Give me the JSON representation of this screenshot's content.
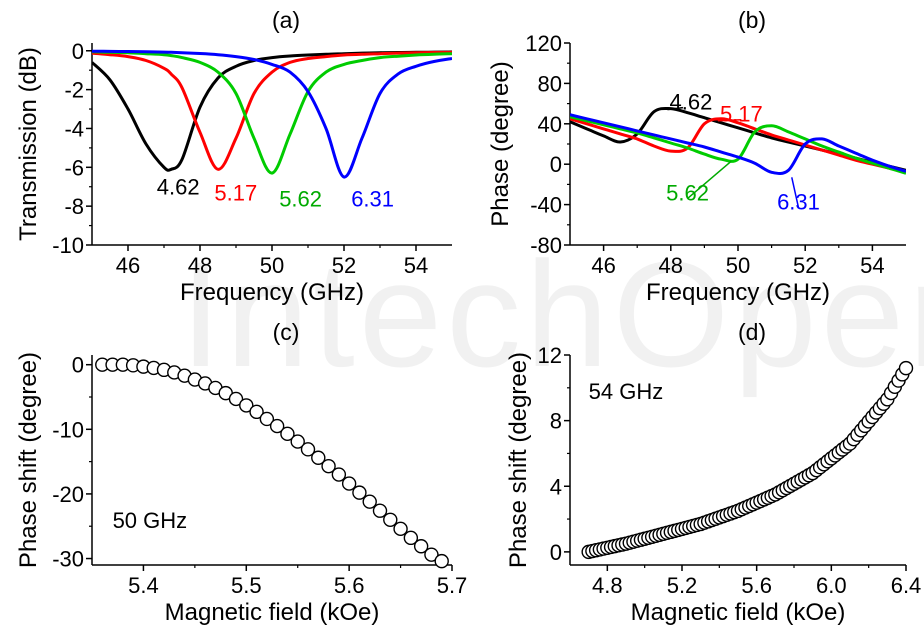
{
  "watermark": "IntechOpen",
  "chart_data": [
    {
      "panel": "(a)",
      "type": "line",
      "xlabel": "Frequency (GHz)",
      "ylabel": "Transmission (dB)",
      "xlim": [
        45,
        55
      ],
      "ylim": [
        -10,
        0.4
      ],
      "xticks": [
        46,
        48,
        50,
        52,
        54
      ],
      "yticks": [
        0,
        -2,
        -4,
        -6,
        -8,
        -10
      ],
      "grid": false,
      "x": [
        45.0,
        45.5,
        46.0,
        46.5,
        47.0,
        47.2,
        47.5,
        48.0,
        48.5,
        49.0,
        49.5,
        50.0,
        50.5,
        51.0,
        51.5,
        52.0,
        52.5,
        53.0,
        53.5,
        54.0,
        54.5,
        55.0
      ],
      "series": [
        {
          "name": "4.62",
          "color": "#000000",
          "values": [
            -0.6,
            -1.5,
            -3.0,
            -4.8,
            -6.0,
            -6.1,
            -5.6,
            -2.9,
            -1.4,
            -0.8,
            -0.5,
            -0.35,
            -0.27,
            -0.22,
            -0.18,
            -0.15,
            -0.12,
            -0.1,
            -0.09,
            -0.08,
            -0.07,
            -0.06
          ]
        },
        {
          "name": "5.17",
          "color": "#ff0000",
          "values": [
            -0.12,
            -0.2,
            -0.3,
            -0.5,
            -0.9,
            -1.2,
            -1.9,
            -4.2,
            -6.1,
            -4.5,
            -2.2,
            -1.1,
            -0.6,
            -0.4,
            -0.3,
            -0.22,
            -0.18,
            -0.15,
            -0.12,
            -0.1,
            -0.09,
            -0.08
          ]
        },
        {
          "name": "5.62",
          "color": "#00cc00",
          "values": [
            -0.05,
            -0.08,
            -0.1,
            -0.15,
            -0.2,
            -0.25,
            -0.35,
            -0.6,
            -1.1,
            -2.2,
            -4.5,
            -6.3,
            -4.3,
            -2.1,
            -1.1,
            -0.7,
            -0.5,
            -0.35,
            -0.28,
            -0.22,
            -0.18,
            -0.15
          ]
        },
        {
          "name": "6.31",
          "color": "#0000ff",
          "values": [
            -0.02,
            -0.03,
            -0.04,
            -0.05,
            -0.07,
            -0.08,
            -0.1,
            -0.14,
            -0.2,
            -0.3,
            -0.45,
            -0.7,
            -1.1,
            -2.1,
            -4.0,
            -6.5,
            -4.5,
            -2.2,
            -1.2,
            -0.8,
            -0.55,
            -0.4
          ]
        }
      ],
      "annotations": [
        {
          "text": "4.62",
          "color": "#000000",
          "x": 46.8,
          "y": -7.0
        },
        {
          "text": "5.17",
          "color": "#ff0000",
          "x": 48.4,
          "y": -7.3
        },
        {
          "text": "5.62",
          "color": "#00aa00",
          "x": 50.2,
          "y": -7.6
        },
        {
          "text": "6.31",
          "color": "#0000ff",
          "x": 52.2,
          "y": -7.6
        }
      ]
    },
    {
      "panel": "(b)",
      "type": "line",
      "xlabel": "Frequency (GHz)",
      "ylabel": "Phase (degree)",
      "xlim": [
        45,
        55
      ],
      "ylim": [
        -80,
        120
      ],
      "xticks": [
        46,
        48,
        50,
        52,
        54
      ],
      "yticks": [
        120,
        80,
        40,
        0,
        -40,
        -80
      ],
      "grid": false,
      "x": [
        45.0,
        45.5,
        46.0,
        46.5,
        47.0,
        47.5,
        48.0,
        48.5,
        49.0,
        49.5,
        50.0,
        50.5,
        51.0,
        51.5,
        52.0,
        52.5,
        53.0,
        53.5,
        54.0,
        54.5,
        55.0
      ],
      "series": [
        {
          "name": "4.62",
          "color": "#000000",
          "values": [
            42,
            35,
            28,
            22,
            30,
            52,
            55,
            51,
            46,
            41,
            36,
            31,
            26,
            22,
            18,
            14,
            10,
            6,
            2,
            -2,
            -6
          ]
        },
        {
          "name": "5.17",
          "color": "#ff0000",
          "values": [
            45,
            40,
            35,
            30,
            25,
            18,
            13,
            16,
            40,
            45,
            41,
            35,
            29,
            24,
            19,
            14,
            9,
            4,
            0,
            -4,
            -8
          ]
        },
        {
          "name": "5.62",
          "color": "#00cc00",
          "values": [
            47,
            43,
            39,
            35,
            31,
            26,
            21,
            16,
            10,
            5,
            5,
            32,
            38,
            32,
            25,
            18,
            12,
            6,
            1,
            -4,
            -9
          ]
        },
        {
          "name": "6.31",
          "color": "#0000ff",
          "values": [
            49,
            45,
            41,
            37,
            33,
            29,
            25,
            21,
            17,
            12,
            7,
            1,
            -8,
            -6,
            20,
            25,
            18,
            11,
            4,
            -2,
            -7
          ]
        }
      ],
      "annotations": [
        {
          "text": "4.62",
          "color": "#000000",
          "x": 48.6,
          "y": 62,
          "ax": 47.9,
          "ay": 54
        },
        {
          "text": "5.17",
          "color": "#ff0000",
          "x": 50.1,
          "y": 50,
          "ax": 49.4,
          "ay": 43
        },
        {
          "text": "5.62",
          "color": "#00aa00",
          "x": 48.5,
          "y": -28,
          "ax": 49.8,
          "ay": 3
        },
        {
          "text": "6.31",
          "color": "#0000ff",
          "x": 51.8,
          "y": -37,
          "ax": 51.6,
          "ay": -13
        }
      ]
    },
    {
      "panel": "(c)",
      "type": "scatter",
      "xlabel": "Magnetic field (kOe)",
      "ylabel": "Phase shift (degree)",
      "xlim": [
        5.35,
        5.7
      ],
      "ylim": [
        -31,
        1.5
      ],
      "xticks": [
        5.4,
        5.5,
        5.6,
        5.7
      ],
      "xtick_labels": [
        "5.4",
        "5.5",
        "5.6",
        "5.7"
      ],
      "yticks": [
        0,
        -10,
        -20,
        -30
      ],
      "grid": false,
      "marker": "open-circle",
      "x": [
        5.36,
        5.37,
        5.38,
        5.39,
        5.4,
        5.41,
        5.42,
        5.43,
        5.44,
        5.45,
        5.46,
        5.47,
        5.48,
        5.49,
        5.5,
        5.51,
        5.52,
        5.53,
        5.54,
        5.55,
        5.56,
        5.57,
        5.58,
        5.59,
        5.6,
        5.61,
        5.62,
        5.63,
        5.64,
        5.65,
        5.66,
        5.67,
        5.68,
        5.69
      ],
      "values": [
        0,
        0,
        0,
        -0.1,
        -0.3,
        -0.5,
        -0.8,
        -1.2,
        -1.7,
        -2.3,
        -2.9,
        -3.6,
        -4.4,
        -5.3,
        -6.3,
        -7.3,
        -8.4,
        -9.5,
        -10.7,
        -11.9,
        -13.1,
        -14.4,
        -15.7,
        -17.0,
        -18.4,
        -19.8,
        -21.2,
        -22.6,
        -24.0,
        -25.4,
        -26.8,
        -28.1,
        -29.4,
        -30.4
      ],
      "annotations": [
        {
          "text": "50 GHz",
          "x": 5.37,
          "y": -24
        }
      ]
    },
    {
      "panel": "(d)",
      "type": "scatter",
      "xlabel": "Magnetic field (kOe)",
      "ylabel": "Phase shift (degree)",
      "xlim": [
        4.6,
        6.4
      ],
      "ylim": [
        -0.8,
        12
      ],
      "xticks": [
        4.8,
        5.2,
        5.6,
        6.0,
        6.4
      ],
      "xtick_labels": [
        "4.8",
        "5.2",
        "5.6",
        "6.0",
        "6.4"
      ],
      "yticks": [
        0,
        4,
        8,
        12
      ],
      "grid": false,
      "marker": "open-circle",
      "x_range": [
        4.7,
        6.4
      ],
      "point_count": 86,
      "curve": [
        [
          4.7,
          0.0
        ],
        [
          4.9,
          0.5
        ],
        [
          5.1,
          1.1
        ],
        [
          5.3,
          1.7
        ],
        [
          5.5,
          2.5
        ],
        [
          5.7,
          3.5
        ],
        [
          5.9,
          4.8
        ],
        [
          6.1,
          6.6
        ],
        [
          6.3,
          9.3
        ],
        [
          6.4,
          11.2
        ]
      ],
      "annotations": [
        {
          "text": "54 GHz",
          "x": 4.7,
          "y": 9.8
        }
      ]
    }
  ]
}
